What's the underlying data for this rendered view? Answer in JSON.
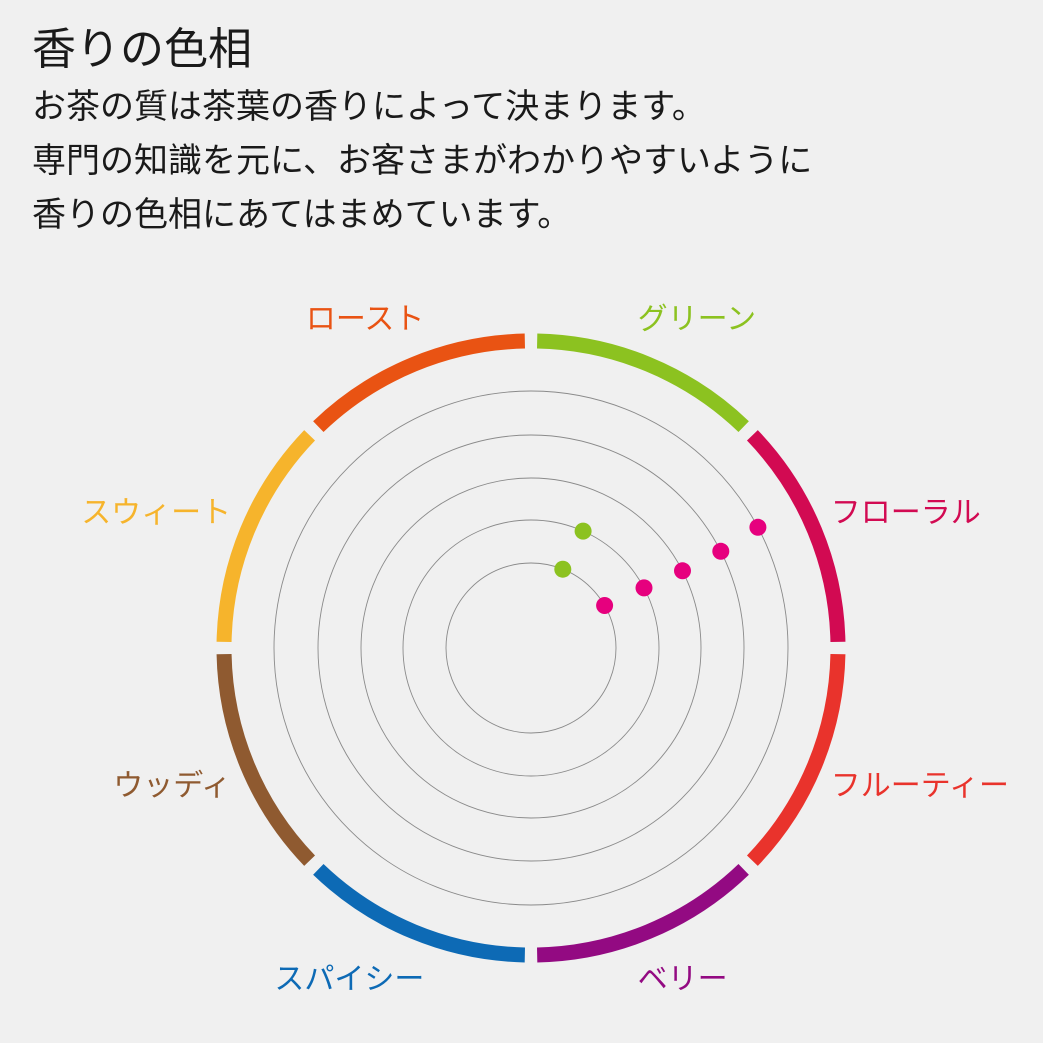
{
  "title": "香りの色相",
  "description": [
    "お茶の質は茶葉の香りによって決まります。",
    "専門の知識を元に、お客さまがわかりやすいように",
    "香りの色相にあてはまめています。"
  ],
  "chart_data": {
    "type": "scatter",
    "categories": [
      {
        "label": "グリーン",
        "color": "#8cc220"
      },
      {
        "label": "フローラル",
        "color": "#d20a52"
      },
      {
        "label": "フルーティー",
        "color": "#e9332c"
      },
      {
        "label": "ベリー",
        "color": "#930a82"
      },
      {
        "label": "スパイシー",
        "color": "#0d6ab5"
      },
      {
        "label": "ウッディ",
        "color": "#8f5a30"
      },
      {
        "label": "スウィート",
        "color": "#f6b42c"
      },
      {
        "label": "ロースト",
        "color": "#e95313"
      }
    ],
    "rings": 5,
    "grid": true,
    "points": [
      {
        "category": "グリーン",
        "ring": 1,
        "angle_deg": 22,
        "color": "#8cc220"
      },
      {
        "category": "グリーン",
        "ring": 2,
        "angle_deg": 24,
        "color": "#8cc220"
      },
      {
        "category": "フローラル",
        "ring": 1,
        "angle_deg": 60,
        "color": "#e6007e"
      },
      {
        "category": "フローラル",
        "ring": 2,
        "angle_deg": 62,
        "color": "#e6007e"
      },
      {
        "category": "フローラル",
        "ring": 3,
        "angle_deg": 63,
        "color": "#e6007e"
      },
      {
        "category": "フローラル",
        "ring": 4,
        "angle_deg": 63,
        "color": "#e6007e"
      },
      {
        "category": "フローラル",
        "ring": 5,
        "angle_deg": 62,
        "color": "#e6007e"
      }
    ]
  }
}
